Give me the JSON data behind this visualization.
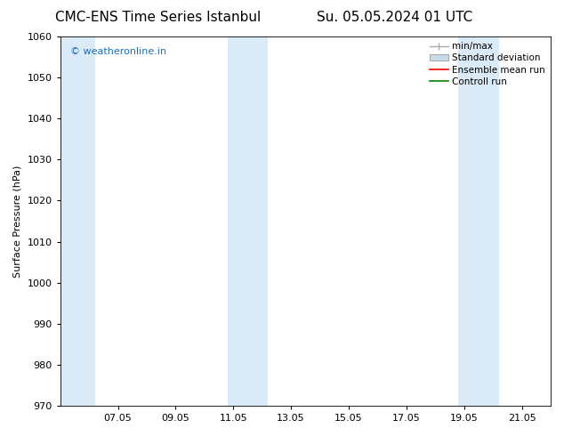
{
  "title_left": "CMC-ENS Time Series Istanbul",
  "title_right": "Su. 05.05.2024 01 UTC",
  "ylabel": "Surface Pressure (hPa)",
  "ylim": [
    970,
    1060
  ],
  "yticks": [
    970,
    980,
    990,
    1000,
    1010,
    1020,
    1030,
    1040,
    1050,
    1060
  ],
  "xtick_labels": [
    "07.05",
    "09.05",
    "11.05",
    "13.05",
    "15.05",
    "17.05",
    "19.05",
    "21.05"
  ],
  "xtick_positions": [
    2,
    4,
    6,
    8,
    10,
    12,
    14,
    16
  ],
  "xlim": [
    0,
    17
  ],
  "shade_bands": [
    {
      "x_start": 0.0,
      "x_end": 1.2
    },
    {
      "x_start": 5.8,
      "x_end": 7.2
    },
    {
      "x_start": 13.8,
      "x_end": 15.2
    }
  ],
  "shade_color": "#daeaf6",
  "background_color": "#ffffff",
  "watermark_text": "© weatheronline.in",
  "watermark_color": "#1a6ebd",
  "watermark_fontsize": 8,
  "legend_entries": [
    {
      "label": "min/max",
      "color": "#aaaaaa",
      "type": "errorbar"
    },
    {
      "label": "Standard deviation",
      "color": "#c8dce8",
      "type": "bar"
    },
    {
      "label": "Ensemble mean run",
      "color": "#ff0000",
      "type": "line"
    },
    {
      "label": "Controll run",
      "color": "#008000",
      "type": "line"
    }
  ],
  "title_fontsize": 11,
  "tick_fontsize": 8,
  "legend_fontsize": 7.5
}
